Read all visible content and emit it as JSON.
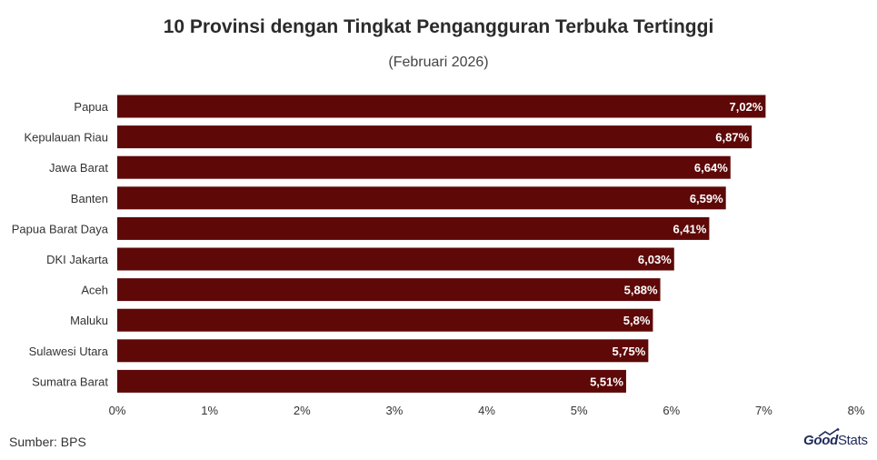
{
  "title": "10 Provinsi dengan Tingkat Pengangguran Terbuka Tertinggi",
  "subtitle": "(Februari 2026)",
  "source": "Sumber: BPS",
  "logo": {
    "good": "Good",
    "stats": "Stats"
  },
  "colors": {
    "bar": "#5e0808",
    "bar_label": "#ffffff",
    "tick_label": "#333333"
  },
  "chart_data": {
    "type": "bar",
    "orientation": "horizontal",
    "title": "10 Provinsi dengan Tingkat Pengangguran Terbuka Tertinggi",
    "subtitle": "(Februari 2026)",
    "categories": [
      "Papua",
      "Kepulauan Riau",
      "Jawa Barat",
      "Banten",
      "Papua Barat Daya",
      "DKI Jakarta",
      "Aceh",
      "Maluku",
      "Sulawesi Utara",
      "Sumatra Barat"
    ],
    "values": [
      7.02,
      6.87,
      6.64,
      6.59,
      6.41,
      6.03,
      5.88,
      5.8,
      5.75,
      5.51
    ],
    "value_labels": [
      "7,02%",
      "6,87%",
      "6,64%",
      "6,59%",
      "6,41%",
      "6,03%",
      "5,88%",
      "5,8%",
      "5,75%",
      "5,51%"
    ],
    "xlim": [
      0,
      8
    ],
    "xticks": [
      "0%",
      "1%",
      "2%",
      "3%",
      "4%",
      "5%",
      "6%",
      "7%",
      "8%"
    ],
    "grid": false,
    "legend": "none"
  }
}
